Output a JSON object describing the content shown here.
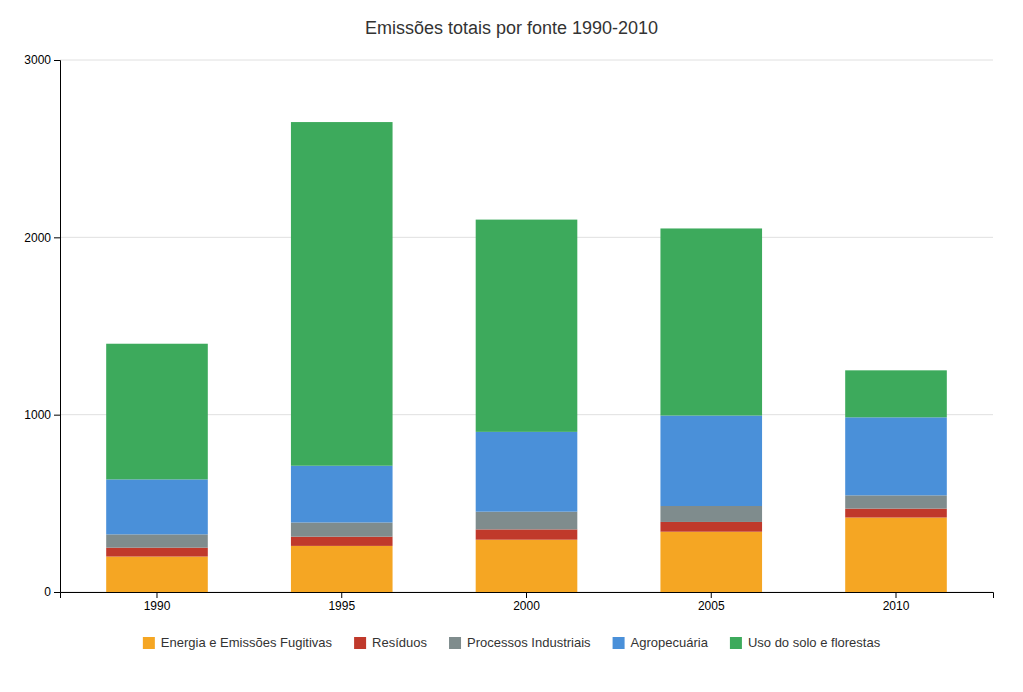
{
  "chart_data": {
    "type": "bar",
    "title": "Emissões totais por fonte 1990-2010",
    "categories": [
      "1990",
      "1995",
      "2000",
      "2005",
      "2010"
    ],
    "series": [
      {
        "name": "Energia e Emissões Fugitivas",
        "color": "#F5A623",
        "values": [
          200,
          260,
          295,
          340,
          420
        ]
      },
      {
        "name": "Resíduos",
        "color": "#C0392B",
        "values": [
          50,
          52,
          58,
          55,
          50
        ]
      },
      {
        "name": "Processos Industriais",
        "color": "#7F8C8D",
        "values": [
          75,
          80,
          100,
          90,
          75
        ]
      },
      {
        "name": "Agropecuária",
        "color": "#4A90D9",
        "values": [
          310,
          320,
          450,
          510,
          440
        ]
      },
      {
        "name": "Uso do solo e florestas",
        "color": "#3DAA5C",
        "values": [
          765,
          1938,
          1197,
          1055,
          265
        ]
      }
    ],
    "stacked": true,
    "ylim": [
      0,
      3000
    ],
    "yticks": [
      0,
      1000,
      2000,
      3000
    ],
    "grid": true,
    "legend": "bottom"
  }
}
